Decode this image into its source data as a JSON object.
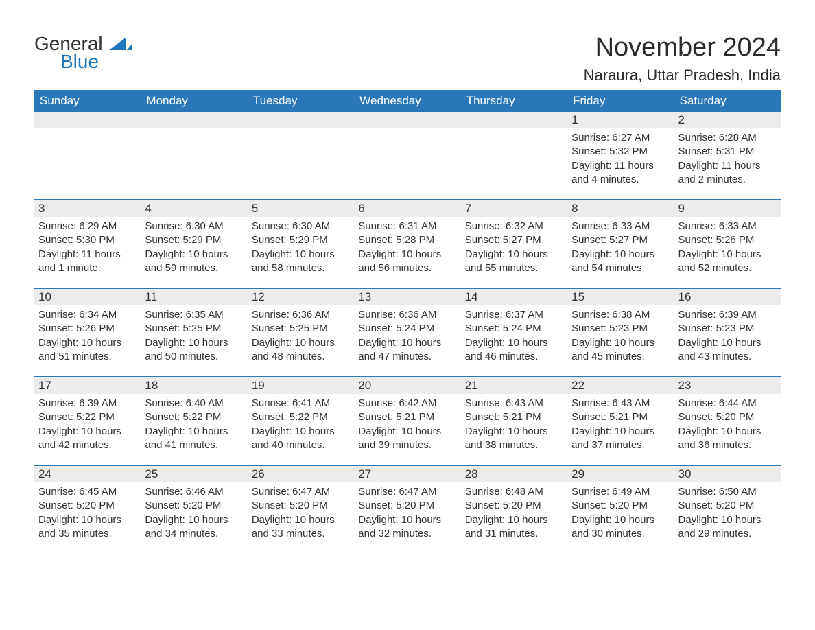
{
  "brand": {
    "text1": "General",
    "text2": "Blue",
    "accent_color": "#2076bc"
  },
  "title": "November 2024",
  "location": "Naraura, Uttar Pradesh, India",
  "colors": {
    "header_bg": "#2a77b9",
    "header_fg": "#ffffff",
    "daynum_bg": "#ececec",
    "text": "#333333",
    "rule": "#2a77b9",
    "page_bg": "#ffffff"
  },
  "days_of_week": [
    "Sunday",
    "Monday",
    "Tuesday",
    "Wednesday",
    "Thursday",
    "Friday",
    "Saturday"
  ],
  "weeks": [
    [
      null,
      null,
      null,
      null,
      null,
      {
        "n": 1,
        "sunrise": "6:27 AM",
        "sunset": "5:32 PM",
        "daylight": "11 hours and 4 minutes."
      },
      {
        "n": 2,
        "sunrise": "6:28 AM",
        "sunset": "5:31 PM",
        "daylight": "11 hours and 2 minutes."
      }
    ],
    [
      {
        "n": 3,
        "sunrise": "6:29 AM",
        "sunset": "5:30 PM",
        "daylight": "11 hours and 1 minute."
      },
      {
        "n": 4,
        "sunrise": "6:30 AM",
        "sunset": "5:29 PM",
        "daylight": "10 hours and 59 minutes."
      },
      {
        "n": 5,
        "sunrise": "6:30 AM",
        "sunset": "5:29 PM",
        "daylight": "10 hours and 58 minutes."
      },
      {
        "n": 6,
        "sunrise": "6:31 AM",
        "sunset": "5:28 PM",
        "daylight": "10 hours and 56 minutes."
      },
      {
        "n": 7,
        "sunrise": "6:32 AM",
        "sunset": "5:27 PM",
        "daylight": "10 hours and 55 minutes."
      },
      {
        "n": 8,
        "sunrise": "6:33 AM",
        "sunset": "5:27 PM",
        "daylight": "10 hours and 54 minutes."
      },
      {
        "n": 9,
        "sunrise": "6:33 AM",
        "sunset": "5:26 PM",
        "daylight": "10 hours and 52 minutes."
      }
    ],
    [
      {
        "n": 10,
        "sunrise": "6:34 AM",
        "sunset": "5:26 PM",
        "daylight": "10 hours and 51 minutes."
      },
      {
        "n": 11,
        "sunrise": "6:35 AM",
        "sunset": "5:25 PM",
        "daylight": "10 hours and 50 minutes."
      },
      {
        "n": 12,
        "sunrise": "6:36 AM",
        "sunset": "5:25 PM",
        "daylight": "10 hours and 48 minutes."
      },
      {
        "n": 13,
        "sunrise": "6:36 AM",
        "sunset": "5:24 PM",
        "daylight": "10 hours and 47 minutes."
      },
      {
        "n": 14,
        "sunrise": "6:37 AM",
        "sunset": "5:24 PM",
        "daylight": "10 hours and 46 minutes."
      },
      {
        "n": 15,
        "sunrise": "6:38 AM",
        "sunset": "5:23 PM",
        "daylight": "10 hours and 45 minutes."
      },
      {
        "n": 16,
        "sunrise": "6:39 AM",
        "sunset": "5:23 PM",
        "daylight": "10 hours and 43 minutes."
      }
    ],
    [
      {
        "n": 17,
        "sunrise": "6:39 AM",
        "sunset": "5:22 PM",
        "daylight": "10 hours and 42 minutes."
      },
      {
        "n": 18,
        "sunrise": "6:40 AM",
        "sunset": "5:22 PM",
        "daylight": "10 hours and 41 minutes."
      },
      {
        "n": 19,
        "sunrise": "6:41 AM",
        "sunset": "5:22 PM",
        "daylight": "10 hours and 40 minutes."
      },
      {
        "n": 20,
        "sunrise": "6:42 AM",
        "sunset": "5:21 PM",
        "daylight": "10 hours and 39 minutes."
      },
      {
        "n": 21,
        "sunrise": "6:43 AM",
        "sunset": "5:21 PM",
        "daylight": "10 hours and 38 minutes."
      },
      {
        "n": 22,
        "sunrise": "6:43 AM",
        "sunset": "5:21 PM",
        "daylight": "10 hours and 37 minutes."
      },
      {
        "n": 23,
        "sunrise": "6:44 AM",
        "sunset": "5:20 PM",
        "daylight": "10 hours and 36 minutes."
      }
    ],
    [
      {
        "n": 24,
        "sunrise": "6:45 AM",
        "sunset": "5:20 PM",
        "daylight": "10 hours and 35 minutes."
      },
      {
        "n": 25,
        "sunrise": "6:46 AM",
        "sunset": "5:20 PM",
        "daylight": "10 hours and 34 minutes."
      },
      {
        "n": 26,
        "sunrise": "6:47 AM",
        "sunset": "5:20 PM",
        "daylight": "10 hours and 33 minutes."
      },
      {
        "n": 27,
        "sunrise": "6:47 AM",
        "sunset": "5:20 PM",
        "daylight": "10 hours and 32 minutes."
      },
      {
        "n": 28,
        "sunrise": "6:48 AM",
        "sunset": "5:20 PM",
        "daylight": "10 hours and 31 minutes."
      },
      {
        "n": 29,
        "sunrise": "6:49 AM",
        "sunset": "5:20 PM",
        "daylight": "10 hours and 30 minutes."
      },
      {
        "n": 30,
        "sunrise": "6:50 AM",
        "sunset": "5:20 PM",
        "daylight": "10 hours and 29 minutes."
      }
    ]
  ],
  "labels": {
    "sunrise": "Sunrise:",
    "sunset": "Sunset:",
    "daylight": "Daylight:"
  }
}
